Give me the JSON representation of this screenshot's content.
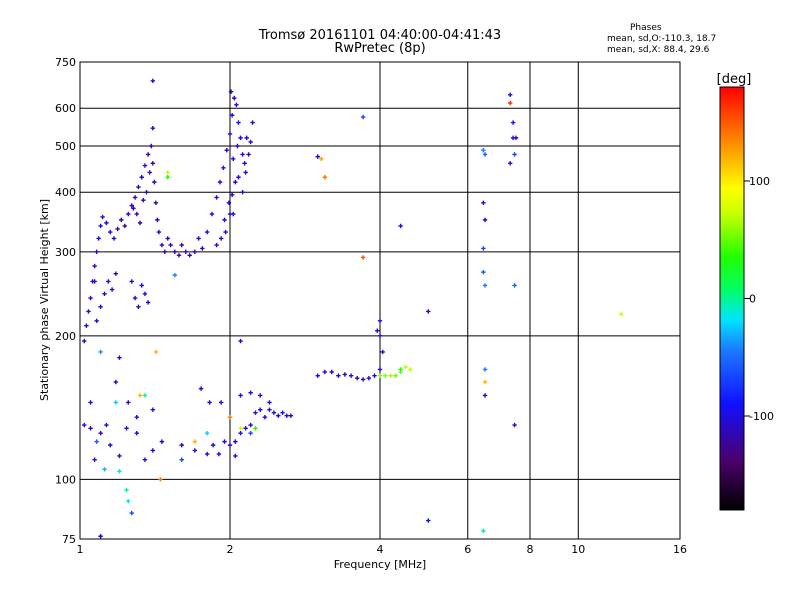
{
  "header": {
    "line1": "Tromsø 20161101 04:40:00-04:41:43",
    "line2": "RwPretec (8p)"
  },
  "phases": {
    "title": "Phases",
    "o_stats": "mean, sd,O:-110.3, 18.7",
    "x_stats": "mean, sd,X: 88.4, 29.6"
  },
  "colorbar": {
    "unit": "[deg]",
    "ticks": [
      {
        "value": 100,
        "label": "100"
      },
      {
        "value": 0,
        "label": "0"
      },
      {
        "value": -100,
        "label": "-100"
      }
    ],
    "range": [
      -180,
      180
    ]
  },
  "chart_data": {
    "type": "scatter",
    "xlabel": "Frequency [MHz]",
    "ylabel": "Stationary phase Virtual Height [km]",
    "x_scale": "log",
    "y_scale": "log",
    "xlim": [
      1,
      16
    ],
    "ylim": [
      75,
      750
    ],
    "x_ticks": [
      {
        "value": 1,
        "label": "1"
      },
      {
        "value": 2,
        "label": "2"
      },
      {
        "value": 4,
        "label": "4"
      },
      {
        "value": 6,
        "label": "6"
      },
      {
        "value": 8,
        "label": "8"
      },
      {
        "value": 10,
        "label": "10"
      },
      {
        "value": 16,
        "label": "16"
      }
    ],
    "y_ticks": [
      {
        "value": 75,
        "label": "75"
      },
      {
        "value": 100,
        "label": "100"
      },
      {
        "value": 200,
        "label": "200"
      },
      {
        "value": 300,
        "label": "300"
      },
      {
        "value": 400,
        "label": "400"
      },
      {
        "value": 500,
        "label": "500"
      },
      {
        "value": 600,
        "label": "600"
      },
      {
        "value": 750,
        "label": "750"
      }
    ],
    "x_grid": [
      2,
      4,
      6,
      8,
      10
    ],
    "y_grid": [
      100,
      200,
      300,
      400,
      500,
      600
    ],
    "grid": true,
    "point_columns": [
      "frequency_MHz",
      "virtual_height_km",
      "phase_deg"
    ],
    "points": [
      [
        1.02,
        195,
        -120
      ],
      [
        1.03,
        210,
        -115
      ],
      [
        1.04,
        225,
        -125
      ],
      [
        1.05,
        240,
        -110
      ],
      [
        1.06,
        260,
        -115
      ],
      [
        1.07,
        280,
        -120
      ],
      [
        1.08,
        300,
        -110
      ],
      [
        1.09,
        320,
        -115
      ],
      [
        1.1,
        340,
        -105
      ],
      [
        1.11,
        355,
        -115
      ],
      [
        1.13,
        345,
        -120
      ],
      [
        1.15,
        330,
        -110
      ],
      [
        1.17,
        320,
        -118
      ],
      [
        1.19,
        335,
        -122
      ],
      [
        1.21,
        350,
        -112
      ],
      [
        1.23,
        340,
        -128
      ],
      [
        1.25,
        360,
        -118
      ],
      [
        1.27,
        375,
        -125
      ],
      [
        1.29,
        390,
        -130
      ],
      [
        1.31,
        410,
        -120
      ],
      [
        1.33,
        430,
        -125
      ],
      [
        1.35,
        455,
        -115
      ],
      [
        1.37,
        480,
        -128
      ],
      [
        1.39,
        500,
        -122
      ],
      [
        1.4,
        460,
        -130
      ],
      [
        1.41,
        420,
        -118
      ],
      [
        1.42,
        380,
        -125
      ],
      [
        1.43,
        350,
        -115
      ],
      [
        1.44,
        330,
        -120
      ],
      [
        1.3,
        360,
        -122
      ],
      [
        1.32,
        345,
        -128
      ],
      [
        1.36,
        400,
        -124
      ],
      [
        1.38,
        440,
        -120
      ],
      [
        1.28,
        370,
        -115
      ],
      [
        1.34,
        385,
        -126
      ],
      [
        1.46,
        310,
        -120
      ],
      [
        1.48,
        300,
        -125
      ],
      [
        1.5,
        320,
        -118
      ],
      [
        1.52,
        310,
        -122
      ],
      [
        1.55,
        300,
        -125
      ],
      [
        1.58,
        295,
        -118
      ],
      [
        1.6,
        310,
        -122
      ],
      [
        1.63,
        300,
        -120
      ],
      [
        1.66,
        295,
        -125
      ],
      [
        1.7,
        300,
        -118
      ],
      [
        1.73,
        320,
        -122
      ],
      [
        1.76,
        305,
        -118
      ],
      [
        1.8,
        330,
        -112
      ],
      [
        1.84,
        360,
        -110
      ],
      [
        1.88,
        390,
        -108
      ],
      [
        1.91,
        420,
        -112
      ],
      [
        1.94,
        450,
        -108
      ],
      [
        1.97,
        490,
        -112
      ],
      [
        2.0,
        530,
        -110
      ],
      [
        2.02,
        580,
        -108
      ],
      [
        2.04,
        630,
        -112
      ],
      [
        2.06,
        610,
        -110
      ],
      [
        2.08,
        560,
        -108
      ],
      [
        2.1,
        520,
        -112
      ],
      [
        2.12,
        480,
        -110
      ],
      [
        2.14,
        460,
        -112
      ],
      [
        2.16,
        520,
        -108
      ],
      [
        2.05,
        420,
        -110
      ],
      [
        1.99,
        380,
        -112
      ],
      [
        1.95,
        350,
        -108
      ],
      [
        2.03,
        470,
        -110
      ],
      [
        2.07,
        500,
        -112
      ],
      [
        2.01,
        650,
        -120
      ],
      [
        1.1,
        230,
        -112
      ],
      [
        1.12,
        245,
        -118
      ],
      [
        1.14,
        260,
        -110
      ],
      [
        1.16,
        250,
        -115
      ],
      [
        1.18,
        270,
        -120
      ],
      [
        1.08,
        215,
        -112
      ],
      [
        1.07,
        260,
        -118
      ],
      [
        1.29,
        240,
        -112
      ],
      [
        1.31,
        230,
        -118
      ],
      [
        1.33,
        255,
        -115
      ],
      [
        1.35,
        245,
        -110
      ],
      [
        1.27,
        260,
        -118
      ],
      [
        1.37,
        235,
        -120
      ],
      [
        1.02,
        130,
        -112
      ],
      [
        1.05,
        128,
        -118
      ],
      [
        1.07,
        110,
        -108
      ],
      [
        1.1,
        125,
        -120
      ],
      [
        1.13,
        130,
        -115
      ],
      [
        1.15,
        118,
        -110
      ],
      [
        1.2,
        112,
        -118
      ],
      [
        1.24,
        128,
        -112
      ],
      [
        1.3,
        125,
        -115
      ],
      [
        1.35,
        110,
        -110
      ],
      [
        1.4,
        115,
        -112
      ],
      [
        1.46,
        120,
        -118
      ],
      [
        1.6,
        118,
        -110
      ],
      [
        1.7,
        115,
        -112
      ],
      [
        1.8,
        113,
        -118
      ],
      [
        1.85,
        118,
        -110
      ],
      [
        1.9,
        113,
        -108
      ],
      [
        1.95,
        120,
        -112
      ],
      [
        2.0,
        118,
        -110
      ],
      [
        2.05,
        120,
        -112
      ],
      [
        2.1,
        125,
        -108
      ],
      [
        2.15,
        128,
        -110
      ],
      [
        2.2,
        130,
        -112
      ],
      [
        2.25,
        138,
        -108
      ],
      [
        2.3,
        140,
        -110
      ],
      [
        2.35,
        135,
        -112
      ],
      [
        2.4,
        140,
        -108
      ],
      [
        2.45,
        138,
        -110
      ],
      [
        2.5,
        136,
        -112
      ],
      [
        2.55,
        138,
        -108
      ],
      [
        2.6,
        136,
        -110
      ],
      [
        2.65,
        136,
        -112
      ],
      [
        1.75,
        155,
        -110
      ],
      [
        1.82,
        145,
        -112
      ],
      [
        1.92,
        145,
        -108
      ],
      [
        2.1,
        150,
        -110
      ],
      [
        2.2,
        152,
        -112
      ],
      [
        2.3,
        150,
        -108
      ],
      [
        2.4,
        145,
        -110
      ],
      [
        3.0,
        165,
        -110
      ],
      [
        3.1,
        168,
        -112
      ],
      [
        3.2,
        168,
        -118
      ],
      [
        3.3,
        165,
        -120
      ],
      [
        3.4,
        166,
        -122
      ],
      [
        3.5,
        165,
        -115
      ],
      [
        3.6,
        163,
        -118
      ],
      [
        3.7,
        162,
        -120
      ],
      [
        3.8,
        163,
        -110
      ],
      [
        3.9,
        165,
        -112
      ],
      [
        4.0,
        170,
        -108
      ],
      [
        3.95,
        205,
        -112
      ],
      [
        4.0,
        215,
        -110
      ],
      [
        4.05,
        185,
        -112
      ],
      [
        4.0,
        165,
        60
      ],
      [
        4.1,
        165,
        65
      ],
      [
        4.2,
        165,
        70
      ],
      [
        4.3,
        165,
        55
      ],
      [
        4.4,
        168,
        60
      ],
      [
        4.6,
        170,
        80
      ],
      [
        4.4,
        170,
        40
      ],
      [
        4.5,
        172,
        75
      ],
      [
        4.0,
        200,
        -100
      ],
      [
        4.4,
        340,
        -110
      ],
      [
        5.0,
        225,
        -112
      ],
      [
        5.0,
        82,
        -100
      ],
      [
        6.45,
        78,
        -10
      ],
      [
        6.5,
        170,
        -60
      ],
      [
        6.5,
        160,
        130
      ],
      [
        6.5,
        150,
        -115
      ],
      [
        6.45,
        380,
        -110
      ],
      [
        6.5,
        350,
        -112
      ],
      [
        6.45,
        305,
        -80
      ],
      [
        6.45,
        272,
        -70
      ],
      [
        6.5,
        255,
        -60
      ],
      [
        6.5,
        480,
        -70
      ],
      [
        6.45,
        490,
        -60
      ],
      [
        7.3,
        640,
        -120
      ],
      [
        7.3,
        615,
        170
      ],
      [
        7.4,
        560,
        -100
      ],
      [
        7.4,
        520,
        -110
      ],
      [
        7.45,
        480,
        -80
      ],
      [
        7.3,
        460,
        -110
      ],
      [
        7.5,
        520,
        -112
      ],
      [
        7.45,
        255,
        -70
      ],
      [
        7.45,
        130,
        -110
      ],
      [
        12.2,
        222,
        80
      ],
      [
        3.1,
        430,
        150
      ],
      [
        3.05,
        470,
        140
      ],
      [
        3.0,
        475,
        -110
      ],
      [
        3.7,
        575,
        -80
      ],
      [
        3.7,
        292,
        160
      ],
      [
        1.4,
        685,
        -110
      ],
      [
        1.4,
        545,
        -112
      ],
      [
        1.1,
        185,
        -50
      ],
      [
        1.2,
        180,
        -120
      ],
      [
        1.25,
        145,
        -112
      ],
      [
        1.3,
        135,
        -118
      ],
      [
        1.32,
        150,
        130
      ],
      [
        1.35,
        150,
        -10
      ],
      [
        1.4,
        140,
        -100
      ],
      [
        1.42,
        185,
        130
      ],
      [
        1.45,
        100,
        150
      ],
      [
        1.5,
        430,
        40
      ],
      [
        1.5,
        440,
        80
      ],
      [
        1.55,
        268,
        -60
      ],
      [
        1.6,
        110,
        -80
      ],
      [
        1.7,
        120,
        130
      ],
      [
        1.8,
        125,
        -30
      ],
      [
        2.2,
        125,
        -80
      ],
      [
        2.0,
        135,
        150
      ],
      [
        2.1,
        128,
        80
      ],
      [
        2.25,
        128,
        40
      ],
      [
        2.1,
        195,
        -110
      ],
      [
        2.05,
        112,
        -110
      ],
      [
        1.27,
        85,
        -80
      ],
      [
        1.25,
        90,
        -20
      ],
      [
        1.24,
        95,
        -10
      ],
      [
        1.2,
        104,
        -15
      ],
      [
        1.12,
        105,
        -40
      ],
      [
        1.08,
        120,
        -70
      ],
      [
        1.05,
        145,
        -110
      ],
      [
        1.1,
        76,
        -110
      ],
      [
        1.18,
        145,
        -30
      ],
      [
        1.18,
        160,
        -115
      ],
      [
        2.0,
        360,
        -110
      ],
      [
        2.02,
        395,
        -112
      ],
      [
        2.08,
        430,
        -110
      ],
      [
        2.12,
        400,
        -108
      ],
      [
        2.15,
        440,
        -110
      ],
      [
        2.18,
        480,
        -112
      ],
      [
        2.2,
        510,
        -110
      ],
      [
        2.22,
        560,
        -112
      ],
      [
        2.03,
        360,
        -108
      ],
      [
        1.96,
        330,
        -110
      ],
      [
        1.92,
        320,
        -112
      ],
      [
        1.88,
        310,
        -108
      ]
    ]
  }
}
